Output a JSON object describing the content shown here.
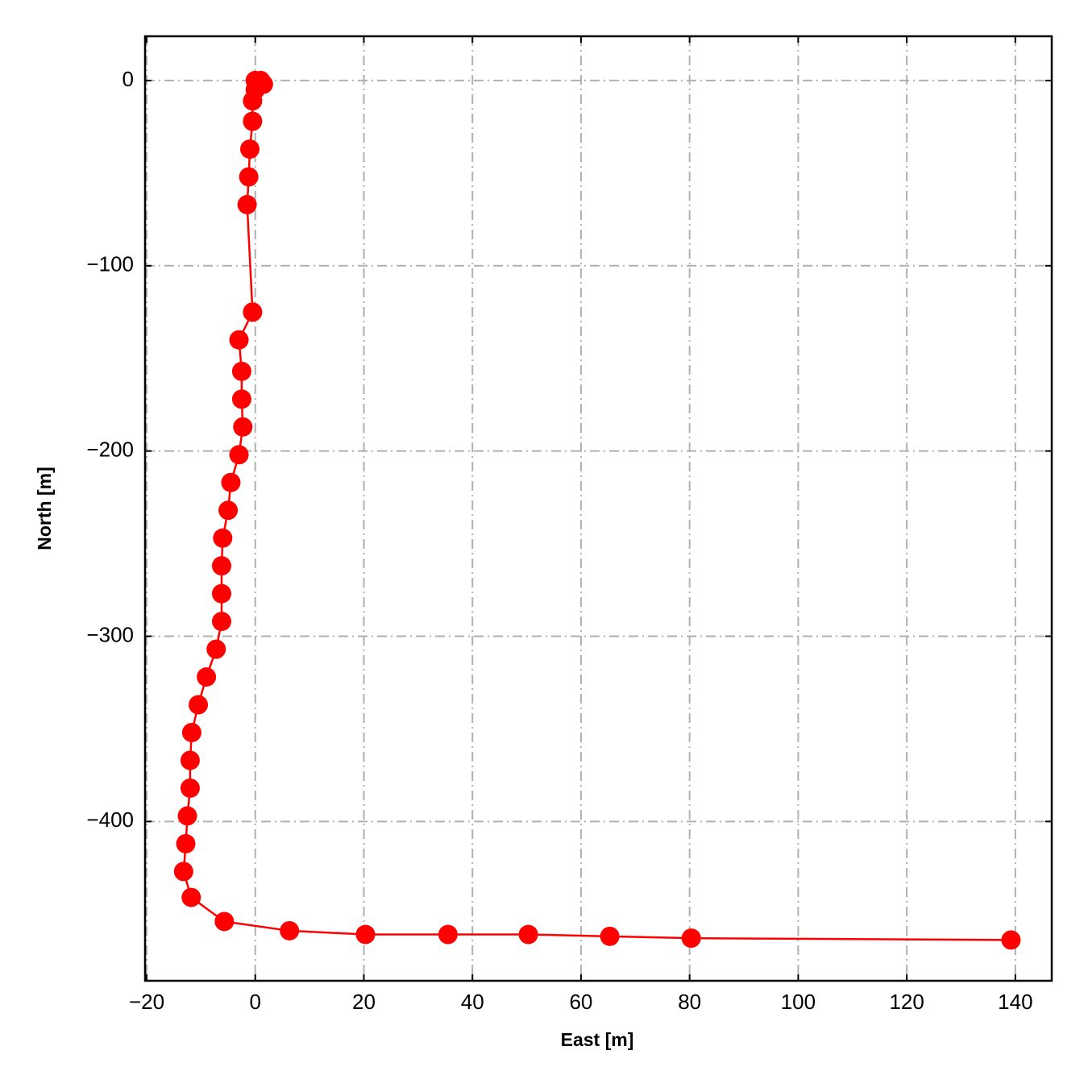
{
  "chart_data": {
    "type": "line",
    "x_label": "East [m]",
    "y_label": "North [m]",
    "series": [
      {
        "color": "#ff0000",
        "x": [
          0,
          1,
          1.5,
          0,
          -0.5,
          -0.5,
          -1,
          -1.2,
          -1.5,
          -0.5,
          -3,
          -2.5,
          -2.5,
          -2.3,
          -3,
          -4.5,
          -5,
          -6,
          -6.2,
          -6.2,
          -6.2,
          -7.2,
          -9,
          -10.5,
          -11.7,
          -12,
          -12,
          -12.5,
          -12.8,
          -13.2,
          -11.8,
          -5.7,
          6.3,
          20.3,
          35.5,
          50.3,
          65.3,
          80.3,
          139.2
        ],
        "values": [
          0,
          0,
          -2,
          -5,
          -11,
          -22,
          -37,
          -52,
          -67,
          -125,
          -140,
          -157,
          -172,
          -187,
          -202,
          -217,
          -232,
          -247,
          -262,
          -277,
          -292,
          -307,
          -322,
          -337,
          -352,
          -367,
          -382,
          -397,
          -412,
          -427,
          -441,
          -454,
          -459,
          -461,
          -461,
          -461,
          -462,
          -463,
          -464
        ]
      }
    ],
    "xlim": [
      -20.3,
      146.7
    ],
    "ylim": [
      -486,
      23.9
    ],
    "xticks": [
      {
        "value": -20,
        "label": "−20"
      },
      0,
      20,
      40,
      60,
      80,
      100,
      120,
      140
    ],
    "yticks": [
      {
        "value": -400,
        "label": "−400"
      },
      {
        "value": -300,
        "label": "−300"
      },
      {
        "value": -200,
        "label": "−200"
      },
      {
        "value": -100,
        "label": "−100"
      },
      0
    ],
    "grid": true,
    "markers": true
  }
}
